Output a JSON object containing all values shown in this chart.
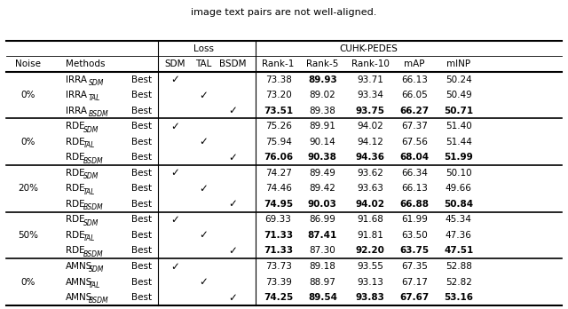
{
  "groups": [
    {
      "noise": "0%",
      "rows": [
        {
          "method_base": "IRRA",
          "method_sub": "SDM",
          "qualifier": "Best",
          "check_col": 0,
          "rank1": "73.38",
          "rank5": "89.93",
          "rank10": "93.71",
          "map": "66.13",
          "minp": "50.24",
          "bold": [
            false,
            true,
            false,
            false,
            false
          ]
        },
        {
          "method_base": "IRRA",
          "method_sub": "TAL",
          "qualifier": "Best",
          "check_col": 1,
          "rank1": "73.20",
          "rank5": "89.02",
          "rank10": "93.34",
          "map": "66.05",
          "minp": "50.49",
          "bold": [
            false,
            false,
            false,
            false,
            false
          ]
        },
        {
          "method_base": "IRRA",
          "method_sub": "BSDM",
          "qualifier": "Best",
          "check_col": 2,
          "rank1": "73.51",
          "rank5": "89.38",
          "rank10": "93.75",
          "map": "66.27",
          "minp": "50.71",
          "bold": [
            true,
            false,
            true,
            true,
            true
          ]
        }
      ]
    },
    {
      "noise": "0%",
      "rows": [
        {
          "method_base": "RDE",
          "method_sub": "SDM",
          "qualifier": "Best",
          "check_col": 0,
          "rank1": "75.26",
          "rank5": "89.91",
          "rank10": "94.02",
          "map": "67.37",
          "minp": "51.40",
          "bold": [
            false,
            false,
            false,
            false,
            false
          ]
        },
        {
          "method_base": "RDE",
          "method_sub": "TAL",
          "qualifier": "Best",
          "check_col": 1,
          "rank1": "75.94",
          "rank5": "90.14",
          "rank10": "94.12",
          "map": "67.56",
          "minp": "51.44",
          "bold": [
            false,
            false,
            false,
            false,
            false
          ]
        },
        {
          "method_base": "RDE",
          "method_sub": "BSDM",
          "qualifier": "Best",
          "check_col": 2,
          "rank1": "76.06",
          "rank5": "90.38",
          "rank10": "94.36",
          "map": "68.04",
          "minp": "51.99",
          "bold": [
            true,
            true,
            true,
            true,
            true
          ]
        }
      ]
    },
    {
      "noise": "20%",
      "rows": [
        {
          "method_base": "RDE",
          "method_sub": "SDM",
          "qualifier": "Best",
          "check_col": 0,
          "rank1": "74.27",
          "rank5": "89.49",
          "rank10": "93.62",
          "map": "66.34",
          "minp": "50.10",
          "bold": [
            false,
            false,
            false,
            false,
            false
          ]
        },
        {
          "method_base": "RDE",
          "method_sub": "TAL",
          "qualifier": "Best",
          "check_col": 1,
          "rank1": "74.46",
          "rank5": "89.42",
          "rank10": "93.63",
          "map": "66.13",
          "minp": "49.66",
          "bold": [
            false,
            false,
            false,
            false,
            false
          ]
        },
        {
          "method_base": "RDE",
          "method_sub": "BSDM",
          "qualifier": "Best",
          "check_col": 2,
          "rank1": "74.95",
          "rank5": "90.03",
          "rank10": "94.02",
          "map": "66.88",
          "minp": "50.84",
          "bold": [
            true,
            true,
            true,
            true,
            true
          ]
        }
      ]
    },
    {
      "noise": "50%",
      "rows": [
        {
          "method_base": "RDE",
          "method_sub": "SDM",
          "qualifier": "Best",
          "check_col": 0,
          "rank1": "69.33",
          "rank5": "86.99",
          "rank10": "91.68",
          "map": "61.99",
          "minp": "45.34",
          "bold": [
            false,
            false,
            false,
            false,
            false
          ]
        },
        {
          "method_base": "RDE",
          "method_sub": "TAL",
          "qualifier": "Best",
          "check_col": 1,
          "rank1": "71.33",
          "rank5": "87.41",
          "rank10": "91.81",
          "map": "63.50",
          "minp": "47.36",
          "bold": [
            true,
            true,
            false,
            false,
            false
          ]
        },
        {
          "method_base": "RDE",
          "method_sub": "BSDM",
          "qualifier": "Best",
          "check_col": 2,
          "rank1": "71.33",
          "rank5": "87.30",
          "rank10": "92.20",
          "map": "63.75",
          "minp": "47.51",
          "bold": [
            true,
            false,
            true,
            true,
            true
          ]
        }
      ]
    },
    {
      "noise": "0%",
      "rows": [
        {
          "method_base": "AMNS",
          "method_sub": "SDM",
          "qualifier": "Best",
          "check_col": 0,
          "rank1": "73.73",
          "rank5": "89.18",
          "rank10": "93.55",
          "map": "67.35",
          "minp": "52.88",
          "bold": [
            false,
            false,
            false,
            false,
            false
          ]
        },
        {
          "method_base": "AMNS",
          "method_sub": "TAL",
          "qualifier": "Best",
          "check_col": 1,
          "rank1": "73.39",
          "rank5": "88.97",
          "rank10": "93.13",
          "map": "67.17",
          "minp": "52.82",
          "bold": [
            false,
            false,
            false,
            false,
            false
          ]
        },
        {
          "method_base": "AMNS",
          "method_sub": "BSDM",
          "qualifier": "Best",
          "check_col": 2,
          "rank1": "74.25",
          "rank5": "89.54",
          "rank10": "93.83",
          "map": "67.67",
          "minp": "53.16",
          "bold": [
            true,
            true,
            true,
            true,
            true
          ]
        }
      ]
    }
  ],
  "col_x": {
    "noise": 0.048,
    "method": 0.12,
    "qualifier": 0.248,
    "sdm": 0.308,
    "tal": 0.358,
    "bsdm": 0.41,
    "rank1": 0.49,
    "rank5": 0.568,
    "rank10": 0.652,
    "map": 0.73,
    "minp": 0.808
  },
  "background_color": "#ffffff",
  "text_color": "#000000",
  "font_size": 7.5,
  "title": "image text pairs are not well-aligned."
}
